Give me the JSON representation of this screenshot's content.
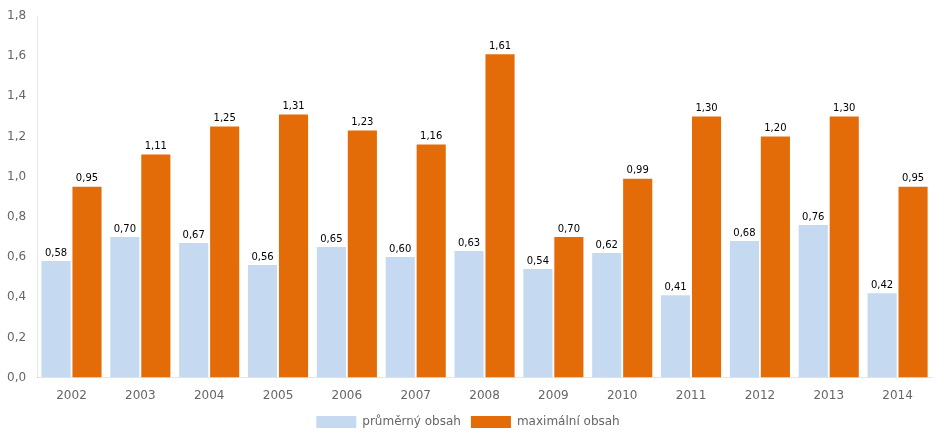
{
  "chart_data": {
    "type": "bar",
    "categories": [
      "2002",
      "2003",
      "2004",
      "2005",
      "2006",
      "2007",
      "2008",
      "2009",
      "2010",
      "2011",
      "2012",
      "2013",
      "2014"
    ],
    "series": [
      {
        "name": "průměrný obsah",
        "color": "#c5d9f1",
        "values": [
          0.58,
          0.7,
          0.67,
          0.56,
          0.65,
          0.6,
          0.63,
          0.54,
          0.62,
          0.41,
          0.68,
          0.76,
          0.42
        ],
        "value_labels": [
          "0,58",
          "0,70",
          "0,67",
          "0,56",
          "0,65",
          "0,60",
          "0,63",
          "0,54",
          "0,62",
          "0,41",
          "0,68",
          "0,76",
          "0,42"
        ]
      },
      {
        "name": "maximální obsah",
        "color": "#e36c09",
        "values": [
          0.95,
          1.11,
          1.25,
          1.31,
          1.23,
          1.16,
          1.61,
          0.7,
          0.99,
          1.3,
          1.2,
          1.3,
          0.95
        ],
        "value_labels": [
          "0,95",
          "1,11",
          "1,25",
          "1,31",
          "1,23",
          "1,16",
          "1,61",
          "0,70",
          "0,99",
          "1,30",
          "1,20",
          "1,30",
          "0,95"
        ]
      }
    ],
    "ylim": [
      0,
      1.8
    ],
    "yticks": [
      {
        "value": 0,
        "label": "0,0"
      },
      {
        "value": 0.2,
        "label": "0,2"
      },
      {
        "value": 0.4,
        "label": "0,4"
      },
      {
        "value": 0.6,
        "label": "0,6"
      },
      {
        "value": 0.8,
        "label": "0,8"
      },
      {
        "value": 1.0,
        "label": "1,0"
      },
      {
        "value": 1.2,
        "label": "1,2"
      },
      {
        "value": 1.4,
        "label": "1,4"
      },
      {
        "value": 1.6,
        "label": "1,6"
      },
      {
        "value": 1.8,
        "label": "1,8"
      }
    ],
    "grid": false,
    "legend": "bottom",
    "data_labels": true
  }
}
